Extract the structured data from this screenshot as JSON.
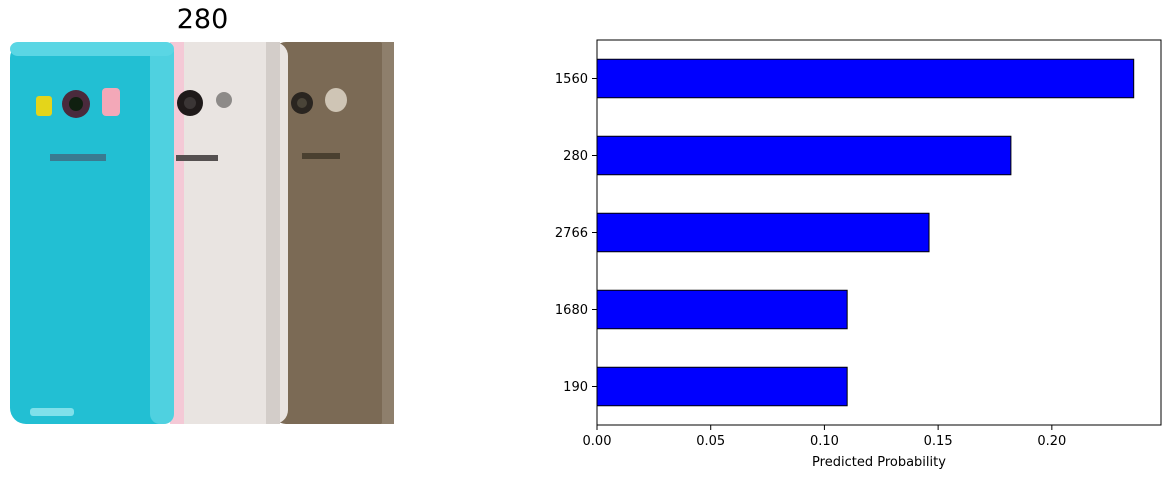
{
  "image_title": "280",
  "colors": {
    "bar": "#0000ff",
    "bar_edge": "#000000",
    "phone_cyan": "#22bfd3",
    "phone_white": "#e9e4e1",
    "phone_brown": "#7b6a55"
  },
  "chart_data": {
    "type": "bar",
    "orientation": "horizontal",
    "categories": [
      "1560",
      "280",
      "2766",
      "1680",
      "190"
    ],
    "values": [
      0.236,
      0.182,
      0.146,
      0.11,
      0.11
    ],
    "xlabel": "Predicted Probability",
    "ylabel": "",
    "xlim": [
      0,
      0.248
    ],
    "xticks": [
      "0.00",
      "0.05",
      "0.10",
      "0.15",
      "0.20"
    ],
    "xtick_values": [
      0,
      0.05,
      0.1,
      0.15,
      0.2
    ],
    "grid": false
  }
}
